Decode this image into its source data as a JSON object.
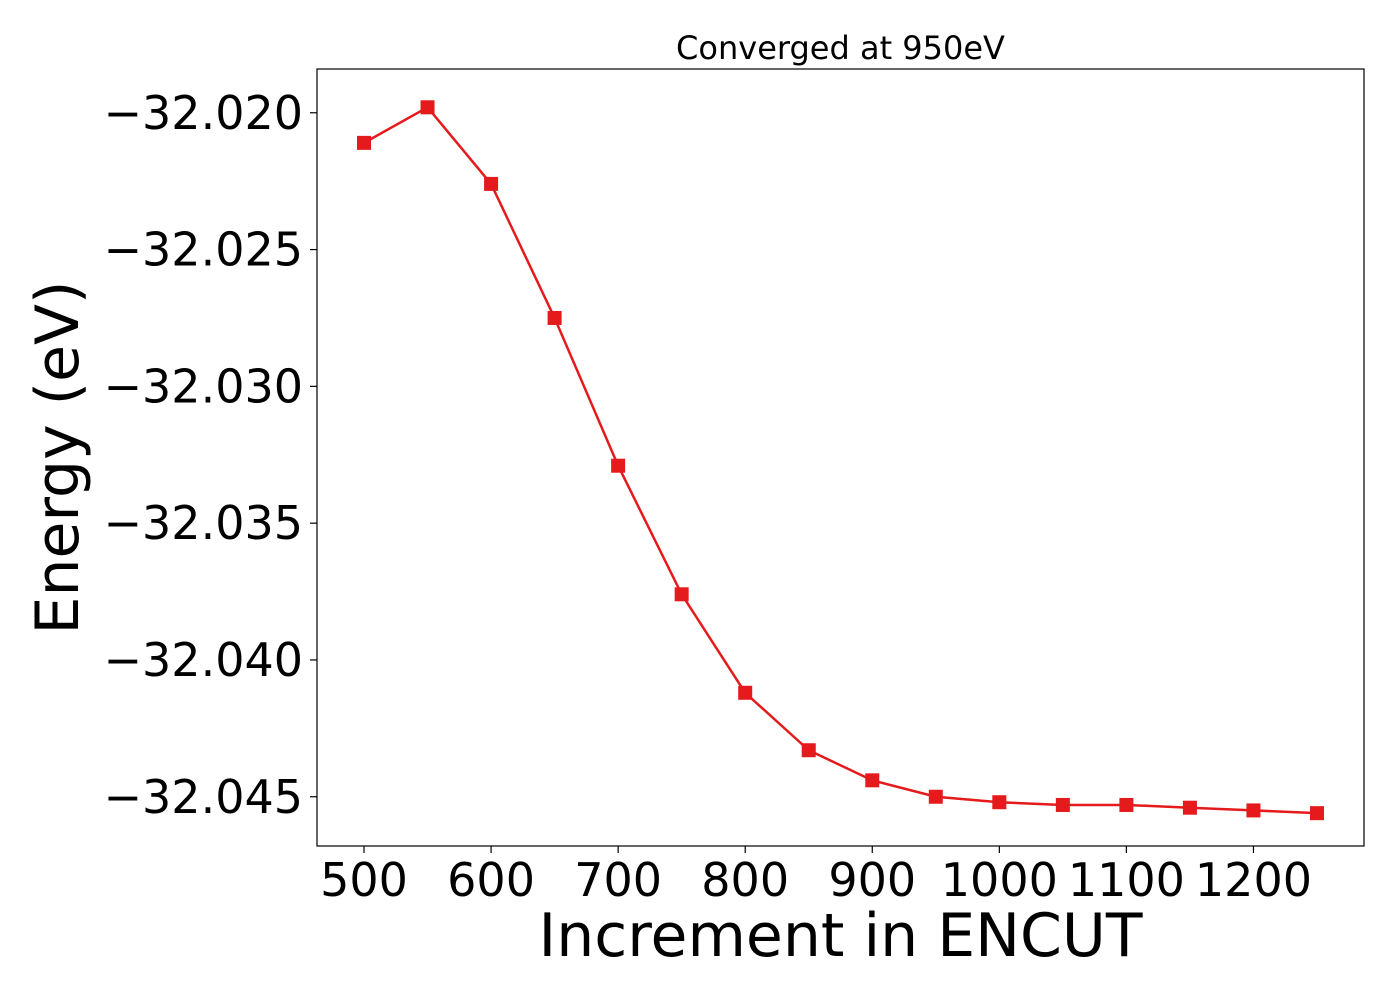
{
  "chart_data": {
    "type": "line",
    "title": "Converged at 950eV",
    "xlabel": "Increment in ENCUT",
    "ylabel": "Energy (eV)",
    "x": [
      500,
      550,
      600,
      650,
      700,
      750,
      800,
      850,
      900,
      950,
      1000,
      1050,
      1100,
      1150,
      1200,
      1250
    ],
    "series": [
      {
        "values": [
          -32.0211,
          -32.0198,
          -32.0226,
          -32.0275,
          -32.0329,
          -32.0376,
          -32.0412,
          -32.0433,
          -32.0444,
          -32.045,
          -32.0452,
          -32.0453,
          -32.0453,
          -32.0454,
          -32.0455,
          -32.0456
        ],
        "color": "#e41a1c",
        "marker": "square"
      }
    ],
    "xticks": [
      500,
      600,
      700,
      800,
      900,
      1000,
      1100,
      1200
    ],
    "xtick_labels": [
      "500",
      "600",
      "700",
      "800",
      "900",
      "1000",
      "1100",
      "1200"
    ],
    "yticks": [
      -32.02,
      -32.025,
      -32.03,
      -32.035,
      -32.04,
      -32.045
    ],
    "ytick_labels": [
      "−32.020",
      "−32.025",
      "−32.030",
      "−32.035",
      "−32.040",
      "−32.045"
    ],
    "xlim": [
      463,
      1287
    ],
    "ylim": [
      -32.0468,
      -32.0184
    ],
    "grid": false,
    "legend": "none"
  }
}
